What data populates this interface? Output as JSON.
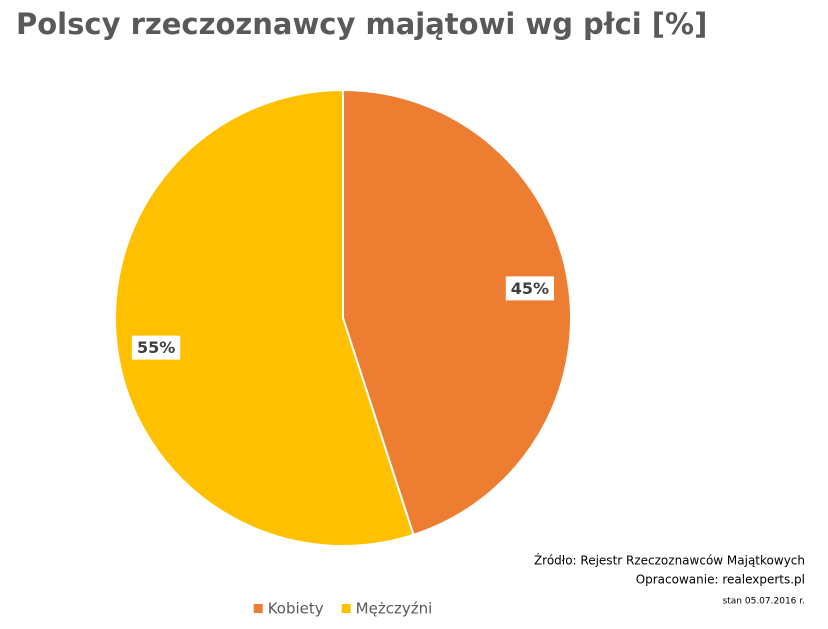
{
  "chart_data": {
    "type": "pie",
    "title": "Polscy rzeczoznawcy majątowi wg płci [%]",
    "categories": [
      "Kobiety",
      "Mężczyźni"
    ],
    "values": [
      45,
      55
    ],
    "value_labels": [
      "45%",
      "55%"
    ],
    "colors": [
      "#ed7d31",
      "#ffc000"
    ],
    "legend": "bottom",
    "notes": [
      "Źródło: Rejestr Rzeczoznawców Majątkowych",
      "Opracowanie: realexperts.pl",
      "stan 05.07.2016 r."
    ]
  }
}
